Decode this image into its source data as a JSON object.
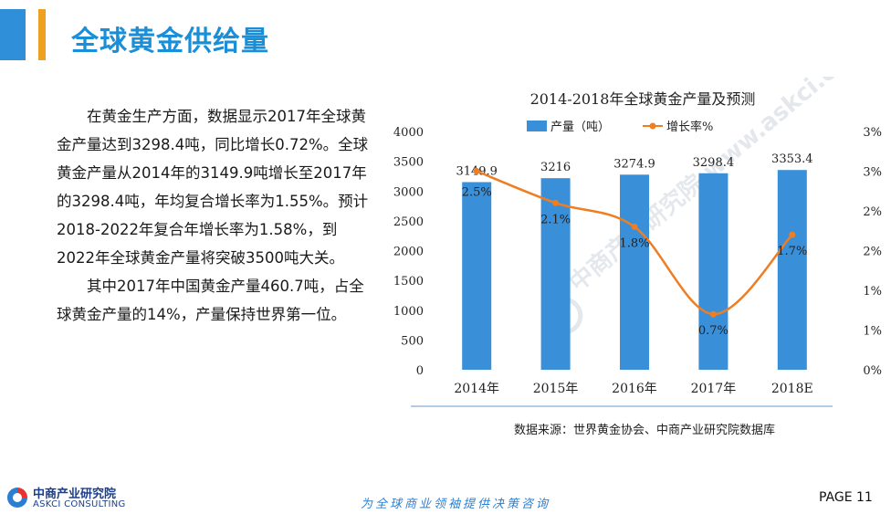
{
  "header": {
    "title": "全球黄金供给量"
  },
  "body_text": [
    "在黄金生产方面，数据显示2017年全球黄金产量达到3298.4吨，同比增长0.72%。全球黄金产量从2014年的3149.9吨增长至2017年的3298.4吨，年均复合增长率为1.55%。预计2018-2022年复合年增长率为1.58%，到2022年全球黄金产量将突破3500吨大关。",
    "其中2017年中国黄金产量460.7吨，占全球黄金产量的14%，产量保持世界第一位。"
  ],
  "chart_data": {
    "type": "bar",
    "title": "2014-2018年全球黄金产量及预测",
    "categories": [
      "2014年",
      "2015年",
      "2016年",
      "2017年",
      "2018E"
    ],
    "series": [
      {
        "name": "产量（吨）",
        "kind": "bar",
        "axis": "left",
        "color": "#3a8fd9",
        "values": [
          3149.9,
          3216,
          3274.9,
          3298.4,
          3353.4
        ],
        "labels": [
          "3149.9",
          "3216",
          "3274.9",
          "3298.4",
          "3353.4"
        ]
      },
      {
        "name": "增长率%",
        "kind": "line",
        "axis": "right",
        "color": "#ef7d22",
        "values": [
          2.5,
          2.1,
          1.8,
          0.7,
          1.7
        ],
        "labels": [
          "2.5%",
          "2.1%",
          "1.8%",
          "0.7%",
          "1.7%"
        ]
      }
    ],
    "y_left": {
      "min": 0,
      "max": 4000,
      "ticks": [
        "0",
        "500",
        "1000",
        "1500",
        "2000",
        "2500",
        "3000",
        "3500",
        "4000"
      ]
    },
    "y_right": {
      "min": 0,
      "max": 3,
      "ticks": [
        "0%",
        "1%",
        "1%",
        "2%",
        "2%",
        "3%",
        "3%"
      ]
    },
    "grid": false,
    "legend_position": "top"
  },
  "source_note": "数据来源：世界黄金协会、中商产业研究院数据库",
  "footer": {
    "logo_cn": "中商产业研究院",
    "logo_en": "ASKCI CONSULTING",
    "slogan": "为全球商业领袖提供决策咨询",
    "page_label": "PAGE 11"
  },
  "watermark": "中商产业研究院 www.askci.com/reports/",
  "colors": {
    "title": "#1a8fd8",
    "accent_blue": "#2f8fd8",
    "accent_orange": "#f0a020"
  }
}
